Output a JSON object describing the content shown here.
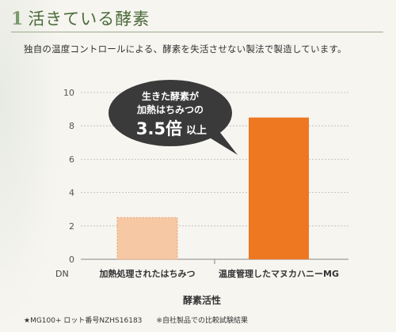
{
  "heading": {
    "number": "1",
    "title": "活きている酵素"
  },
  "subtitle": "独自の温度コントロールによる、酵素を失活させない製法で製造しています。",
  "callout": {
    "line1": "生きた酵素が",
    "line2": "加熱はちみつの",
    "big": "3.5倍",
    "suffix": "以上"
  },
  "footnotes": {
    "left": "★MG100+ ロット番号NZHS16183",
    "right": "※自社製品での比較試験結果"
  },
  "colors": {
    "bar1_fill": "#f6c8a4",
    "bar1_stroke": "#e9a070",
    "bar2_fill": "#ee7722",
    "callout_bg": "#3a3a3a",
    "axis": "#888888",
    "grid": "#b8b8b8"
  },
  "chart_data": {
    "type": "bar",
    "categories": [
      "加熱処理されたはちみつ",
      "温度管理したマヌカハニーMG"
    ],
    "values": [
      2.5,
      8.5
    ],
    "ylabel": "DN",
    "xlabel": "酵素活性",
    "ylim": [
      0,
      10
    ],
    "yticks": [
      0,
      2,
      4,
      6,
      8,
      10
    ],
    "grid": true
  }
}
